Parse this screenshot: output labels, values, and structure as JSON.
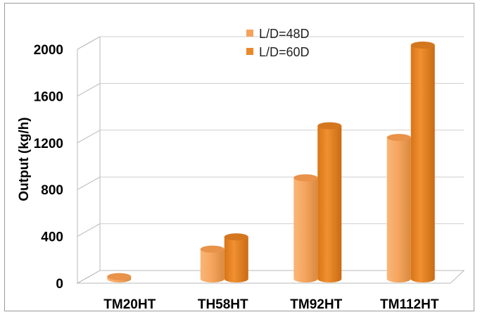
{
  "chart_data": {
    "type": "bar",
    "title": "",
    "xlabel": "",
    "ylabel": "Output (kg/h)",
    "ylim": [
      0,
      2000
    ],
    "yticks": [
      0,
      400,
      800,
      1200,
      1600,
      2000
    ],
    "grid": true,
    "legend_position": "top-center",
    "categories": [
      "TM20HT",
      "TH58HT",
      "TM92HT",
      "TM112HT"
    ],
    "series": [
      {
        "name": "L/D=48D",
        "color": "#f5a35a",
        "values": [
          20,
          255,
          865,
          1210
        ]
      },
      {
        "name": "L/D=60D",
        "color": "#e8892a",
        "values": [
          null,
          360,
          1310,
          2000
        ]
      }
    ]
  }
}
